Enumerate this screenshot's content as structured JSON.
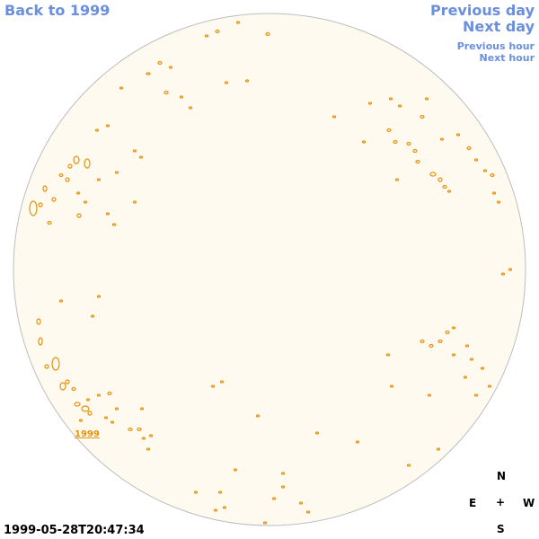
{
  "nav": {
    "back": "Back to 1999",
    "previous_day": "Previous day",
    "next_day": "Next day",
    "previous_hour": "Previous hour",
    "next_hour": "Next hour"
  },
  "disk": {
    "fill_color": "#fffaef",
    "outline_color": "#bdbdbd",
    "contour_color": "#e8900a",
    "year_link": "1999"
  },
  "compass": {
    "north": "N",
    "east": "E",
    "center": "+",
    "west": "W",
    "south": "S"
  },
  "timestamp": "1999-05-28T20:47:34"
}
